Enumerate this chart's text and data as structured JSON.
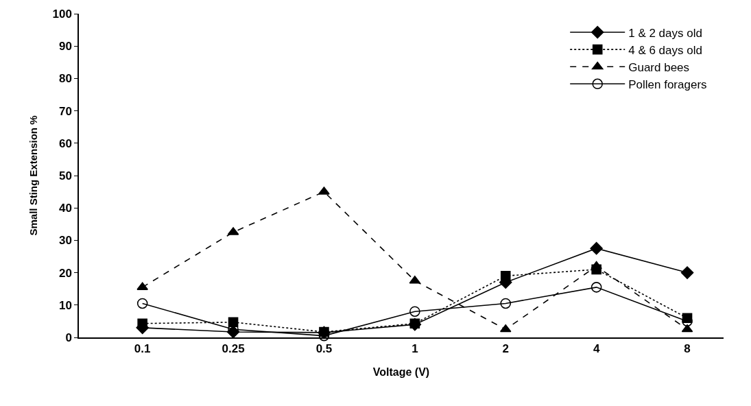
{
  "chart_data": {
    "type": "line",
    "xlabel": "Voltage (V)",
    "ylabel": "Small Sting Extension %",
    "categories": [
      "0.1",
      "0.25",
      "0.5",
      "1",
      "2",
      "4",
      "8"
    ],
    "ylim": [
      0,
      100
    ],
    "yticks": [
      0,
      10,
      20,
      30,
      40,
      50,
      60,
      70,
      80,
      90,
      100
    ],
    "grid": false,
    "legend": "top right",
    "series": [
      {
        "name": "1 & 2 days old",
        "color": "#000000",
        "marker": "diamond",
        "line_style": "solid",
        "values": [
          3,
          1.7,
          1.5,
          4,
          17,
          27.5,
          20
        ]
      },
      {
        "name": "4 & 6 days old",
        "color": "#000000",
        "marker": "square",
        "line_style": "dotted",
        "values": [
          4.3,
          4.7,
          1.7,
          4.3,
          19,
          21,
          6
        ]
      },
      {
        "name": "Guard bees",
        "color": "#000000",
        "marker": "triangle",
        "line_style": "dashed",
        "values": [
          15.5,
          32.5,
          45,
          17.5,
          2.5,
          22,
          2.5
        ]
      },
      {
        "name": "Pollen foragers",
        "color": "#000000",
        "marker": "circle",
        "line_style": "solid",
        "values": [
          10.5,
          2.5,
          0.5,
          8,
          10.5,
          15.5,
          5
        ]
      }
    ]
  }
}
